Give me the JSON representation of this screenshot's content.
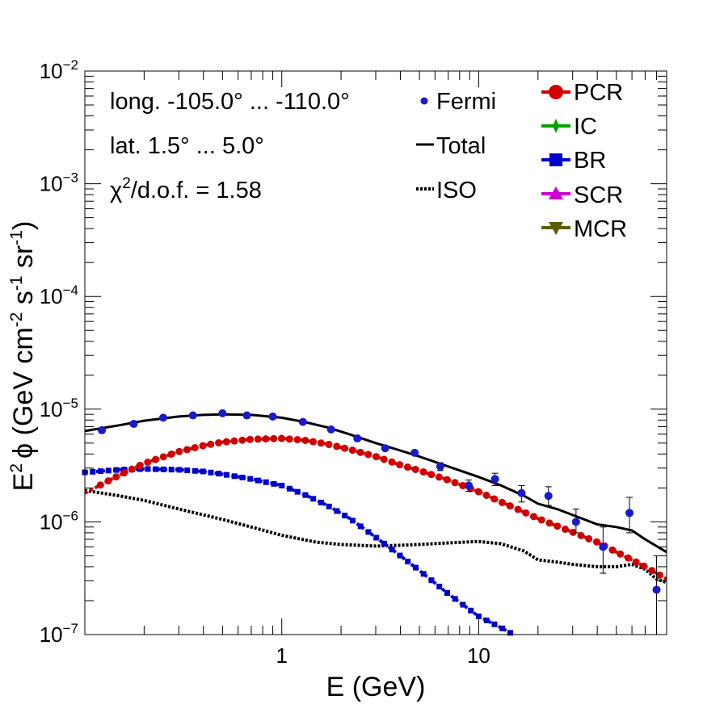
{
  "chart_data": {
    "type": "scatter",
    "xlabel": "E (GeV)",
    "ylabel_main": "E",
    "ylabel_phi": "ϕ (GeV cm",
    "ylabel_s": " s",
    "ylabel_sr": " sr",
    "ylabel_close": ")",
    "ylabel_exp2": "2",
    "ylabel_expm2": "-2",
    "ylabel_expm1": "-1",
    "xscale": "log",
    "yscale": "log",
    "xlim": [
      0.1,
      90
    ],
    "ylim": [
      1e-07,
      0.01
    ],
    "x_ticks": [
      {
        "value": 1,
        "label": "1"
      },
      {
        "value": 10,
        "label": "10"
      }
    ],
    "y_ticks": [
      {
        "value": 1e-07,
        "base": "10",
        "exp": "−7"
      },
      {
        "value": 1e-06,
        "base": "10",
        "exp": "−6"
      },
      {
        "value": 1e-05,
        "base": "10",
        "exp": "−5"
      },
      {
        "value": 0.0001,
        "base": "10",
        "exp": "−4"
      },
      {
        "value": 0.001,
        "base": "10",
        "exp": "−3"
      },
      {
        "value": 0.01,
        "base": "10",
        "exp": "−2"
      }
    ],
    "info": {
      "longitude": "long. -105.0° ... -110.0°",
      "latitude": "lat. 1.5° ... 5.0°",
      "chi_symbol": "χ",
      "chi_exp": "2",
      "chi_rest": "/d.o.f. = 1.58"
    },
    "legend_left": [
      {
        "key": "fermi",
        "label": "Fermi"
      },
      {
        "key": "total",
        "label": "Total"
      },
      {
        "key": "iso",
        "label": "ISO"
      }
    ],
    "legend_right": [
      {
        "key": "pcr",
        "label": "PCR"
      },
      {
        "key": "ic",
        "label": "IC"
      },
      {
        "key": "br",
        "label": "BR"
      },
      {
        "key": "scr",
        "label": "SCR"
      },
      {
        "key": "mcr",
        "label": "MCR"
      }
    ],
    "colors": {
      "fermi": "#1a1acc",
      "total": "#000000",
      "iso": "#000000",
      "pcr": "#d10000",
      "ic": "#00a000",
      "br": "#0000cc",
      "scr": "#d000d0",
      "mcr": "#5c5c00"
    },
    "fermi": [
      {
        "x": 0.122,
        "y": 6.5e-06,
        "lo": 6.2e-06,
        "hi": 6.8e-06
      },
      {
        "x": 0.177,
        "y": 7.4e-06,
        "lo": 7.1e-06,
        "hi": 7.7e-06
      },
      {
        "x": 0.25,
        "y": 8.4e-06,
        "lo": 8.1e-06,
        "hi": 8.7e-06
      },
      {
        "x": 0.354,
        "y": 8.8e-06,
        "lo": 8.5e-06,
        "hi": 9.1e-06
      },
      {
        "x": 0.5,
        "y": 9.2e-06,
        "lo": 8.9e-06,
        "hi": 9.5e-06
      },
      {
        "x": 0.665,
        "y": 8.8e-06,
        "lo": 8.5e-06,
        "hi": 9.1e-06
      },
      {
        "x": 0.9,
        "y": 8.6e-06,
        "lo": 8.3e-06,
        "hi": 8.9e-06
      },
      {
        "x": 1.28,
        "y": 7.7e-06,
        "lo": 7.4e-06,
        "hi": 8e-06
      },
      {
        "x": 1.78,
        "y": 6.6e-06,
        "lo": 6.35e-06,
        "hi": 6.85e-06
      },
      {
        "x": 2.42,
        "y": 5.5e-06,
        "lo": 5.28e-06,
        "hi": 5.72e-06
      },
      {
        "x": 3.35,
        "y": 4.5e-06,
        "lo": 4.3e-06,
        "hi": 4.7e-06
      },
      {
        "x": 4.73,
        "y": 4.1e-06,
        "lo": 3.9e-06,
        "hi": 4.3e-06
      },
      {
        "x": 6.38,
        "y": 3.1e-06,
        "lo": 2.85e-06,
        "hi": 3.35e-06
      },
      {
        "x": 8.9,
        "y": 2.1e-06,
        "lo": 1.87e-06,
        "hi": 2.35e-06
      },
      {
        "x": 12.1,
        "y": 2.4e-06,
        "lo": 2.1e-06,
        "hi": 2.7e-06
      },
      {
        "x": 16.5,
        "y": 1.8e-06,
        "lo": 1.5e-06,
        "hi": 2.1e-06
      },
      {
        "x": 22.6,
        "y": 1.7e-06,
        "lo": 1.4e-06,
        "hi": 2.05e-06
      },
      {
        "x": 31.2,
        "y": 1e-06,
        "lo": 8e-07,
        "hi": 1.3e-06
      },
      {
        "x": 42.8,
        "y": 6e-07,
        "lo": 3.5e-07,
        "hi": 9e-07
      },
      {
        "x": 58.3,
        "y": 1.2e-06,
        "lo": 8e-07,
        "hi": 1.65e-06
      },
      {
        "x": 80.0,
        "y": 2.5e-07,
        "lo": 1e-07,
        "hi": 5e-07
      }
    ],
    "total": {
      "x": [
        0.1,
        0.15,
        0.2,
        0.3,
        0.4,
        0.5,
        0.7,
        1.0,
        1.3,
        1.7,
        2.2,
        3.0,
        4.0,
        5.0,
        7.0,
        10,
        13,
        17,
        20,
        25,
        30,
        40,
        50,
        60,
        70,
        80,
        90
      ],
      "y": [
        6.4e-06,
        7.2e-06,
        7.9e-06,
        8.6e-06,
        8.9e-06,
        9e-06,
        8.9e-06,
        8.4e-06,
        7.7e-06,
        6.9e-06,
        6e-06,
        5e-06,
        4.3e-06,
        3.8e-06,
        3.1e-06,
        2.5e-06,
        2.1e-06,
        1.7e-06,
        1.45e-06,
        1.3e-06,
        1.15e-06,
        9.5e-07,
        9e-07,
        8.4e-07,
        7e-07,
        6.1e-07,
        5.4e-07
      ]
    },
    "iso": {
      "x": [
        0.1,
        0.15,
        0.2,
        0.3,
        0.5,
        0.7,
        1.0,
        1.5,
        2.0,
        3.0,
        4.0,
        5.0,
        7.0,
        10,
        13,
        17,
        20,
        25,
        30,
        40,
        50,
        60,
        70,
        80,
        90
      ],
      "y": [
        1.9e-06,
        1.7e-06,
        1.55e-06,
        1.3e-06,
        1.05e-06,
        9e-07,
        7.6e-07,
        6.6e-07,
        6.3e-07,
        6.1e-07,
        6.2e-07,
        6.3e-07,
        6.5e-07,
        6.7e-07,
        6.4e-07,
        5.5e-07,
        4.6e-07,
        4.4e-07,
        4.2e-07,
        4e-07,
        4e-07,
        4.2e-07,
        3.8e-07,
        3.1e-07,
        2.9e-07
      ]
    },
    "pcr": {
      "x": [
        0.1,
        0.15,
        0.2,
        0.3,
        0.4,
        0.5,
        0.7,
        1.0,
        1.3,
        1.7,
        2.2,
        3.0,
        4.0,
        5.0,
        7.0,
        10,
        13,
        17,
        20,
        30,
        40,
        50,
        60,
        70,
        80,
        90
      ],
      "y": [
        1.8e-06,
        2.6e-06,
        3.3e-06,
        4.2e-06,
        4.75e-06,
        5.1e-06,
        5.4e-06,
        5.5e-06,
        5.3e-06,
        4.9e-06,
        4.4e-06,
        3.8e-06,
        3.2e-06,
        2.85e-06,
        2.35e-06,
        1.85e-06,
        1.5e-06,
        1.22e-06,
        1.07e-06,
        8.1e-07,
        6.6e-07,
        5.4e-07,
        4.6e-07,
        4e-07,
        3.5e-07,
        3.1e-07
      ]
    },
    "br": {
      "x": [
        0.1,
        0.15,
        0.2,
        0.3,
        0.4,
        0.5,
        0.7,
        1.0,
        1.3,
        1.7,
        2.2,
        3.0,
        4.0,
        5.0,
        7.0,
        10,
        13,
        15
      ],
      "y": [
        2.75e-06,
        2.9e-06,
        2.95e-06,
        2.9e-06,
        2.8e-06,
        2.65e-06,
        2.4e-06,
        2.1e-06,
        1.75e-06,
        1.4e-06,
        1.08e-06,
        7.3e-07,
        5e-07,
        3.7e-07,
        2.3e-07,
        1.45e-07,
        1.15e-07,
        1e-07
      ]
    }
  }
}
